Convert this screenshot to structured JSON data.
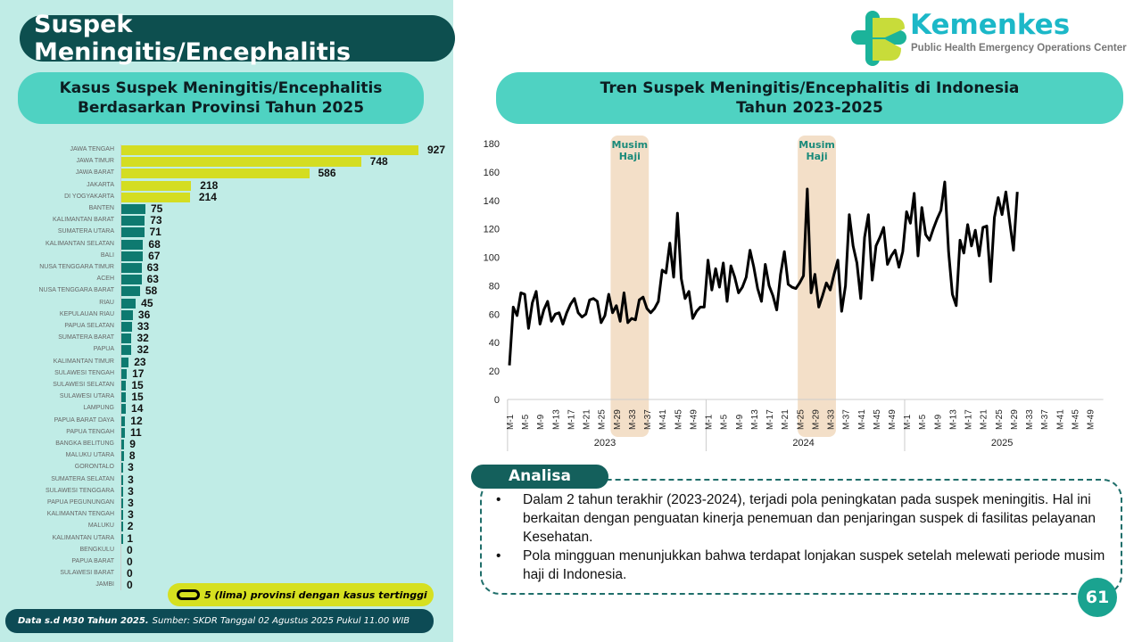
{
  "header": {
    "title": "Suspek Meningitis/Encephalitis",
    "logo_title": "Kemenkes",
    "logo_subtitle": "Public Health Emergency Operations Center",
    "page_number": "61"
  },
  "left_panel": {
    "subtitle_line1": "Kasus Suspek Meningitis/Encephalitis",
    "subtitle_line2": "Berdasarkan Provinsi Tahun 2025",
    "legend": "5 (lima) provinsi dengan kasus tertinggi",
    "footer_bold": "Data s.d M30 Tahun 2025.",
    "footer_text": "Sumber: SKDR Tanggal 02 Agustus 2025 Pukul 11.00 WIB"
  },
  "right_panel": {
    "subtitle_line1": "Tren Suspek Meningitis/Encephalitis di Indonesia",
    "subtitle_line2": "Tahun 2023-2025"
  },
  "analisa": {
    "label": "Analisa",
    "points": [
      "Dalam 2 tahun terakhir (2023-2024), terjadi pola peningkatan pada suspek meningitis. Hal ini berkaitan dengan penguatan kinerja penemuan dan penjaringan suspek di fasilitas pelayanan Kesehatan.",
      "Pola mingguan menunjukkan bahwa terdapat lonjakan suspek setelah melewati periode musim haji di Indonesia."
    ]
  },
  "colors": {
    "top5": "#d4dd22",
    "others": "#0e7a70",
    "line": "#000000",
    "band": "#f3dfc8",
    "band_text": "#1a8a7a"
  },
  "chart_data": [
    {
      "type": "bar",
      "orientation": "horizontal",
      "title": "Kasus Suspek Meningitis/Encephalitis Berdasarkan Provinsi Tahun 2025",
      "categories": [
        "JAWA TENGAH",
        "JAWA TIMUR",
        "JAWA BARAT",
        "JAKARTA",
        "DI YOGYAKARTA",
        "BANTEN",
        "KALIMANTAN BARAT",
        "SUMATERA UTARA",
        "KALIMANTAN SELATAN",
        "BALI",
        "NUSA TENGGARA TIMUR",
        "ACEH",
        "NUSA TENGGARA BARAT",
        "RIAU",
        "KEPULAUAN RIAU",
        "PAPUA SELATAN",
        "SUMATERA BARAT",
        "PAPUA",
        "KALIMANTAN TIMUR",
        "SULAWESI TENGAH",
        "SULAWESI SELATAN",
        "SULAWESI UTARA",
        "LAMPUNG",
        "PAPUA BARAT DAYA",
        "PAPUA TENGAH",
        "BANGKA BELITUNG",
        "MALUKU UTARA",
        "GORONTALO",
        "SUMATERA SELATAN",
        "SULAWESI TENGGARA",
        "PAPUA PEGUNUNGAN",
        "KALIMANTAN TENGAH",
        "MALUKU",
        "KALIMANTAN UTARA",
        "BENGKULU",
        "PAPUA BARAT",
        "SULAWESI BARAT",
        "JAMBI"
      ],
      "values": [
        927,
        748,
        586,
        218,
        214,
        75,
        73,
        71,
        68,
        67,
        63,
        63,
        58,
        45,
        36,
        33,
        32,
        32,
        23,
        17,
        15,
        15,
        14,
        12,
        11,
        9,
        8,
        3,
        3,
        3,
        3,
        3,
        2,
        1,
        0,
        0,
        0,
        0
      ],
      "highlight_top": 5
    },
    {
      "type": "line",
      "title": "Tren Suspek Meningitis/Encephalitis di Indonesia Tahun 2023-2025",
      "ylim": [
        0,
        180
      ],
      "yticks": [
        0,
        20,
        40,
        60,
        80,
        100,
        120,
        140,
        160,
        180
      ],
      "years": [
        "2023",
        "2024",
        "2025"
      ],
      "weeks_per_year": [
        52,
        52,
        52
      ],
      "annotation": "Musim Haji",
      "annotation_ranges": [
        {
          "year": "2023",
          "from_week": 28,
          "to_week": 38
        },
        {
          "year": "2024",
          "from_week": 25,
          "to_week": 35
        }
      ],
      "series": [
        {
          "year": "2023",
          "values": [
            24,
            65,
            59,
            75,
            74,
            50,
            68,
            76,
            53,
            63,
            69,
            55,
            60,
            61,
            53,
            61,
            67,
            71,
            61,
            58,
            60,
            70,
            71,
            69,
            54,
            59,
            74,
            61,
            66,
            55,
            75,
            54,
            57,
            56,
            70,
            72,
            64,
            61,
            64,
            69,
            91,
            89,
            110,
            86,
            131,
            85,
            71,
            76,
            57,
            62,
            65,
            65
          ]
        },
        {
          "year": "2024",
          "values": [
            98,
            77,
            92,
            79,
            96,
            69,
            94,
            86,
            75,
            79,
            86,
            105,
            93,
            78,
            69,
            95,
            80,
            73,
            63,
            88,
            104,
            81,
            79,
            78,
            82,
            87,
            148,
            75,
            88,
            65,
            73,
            82,
            77,
            88,
            98,
            62,
            80,
            130,
            108,
            96,
            71,
            114,
            130,
            84,
            108,
            114,
            121,
            95,
            101,
            105,
            93,
            104
          ]
        },
        {
          "year": "2025",
          "values": [
            132,
            124,
            145,
            101,
            135,
            116,
            112,
            120,
            127,
            133,
            153,
            104,
            74,
            66,
            112,
            103,
            123,
            108,
            119,
            101,
            121,
            122,
            83,
            128,
            142,
            130,
            146,
            125,
            105,
            146
          ]
        }
      ]
    }
  ]
}
